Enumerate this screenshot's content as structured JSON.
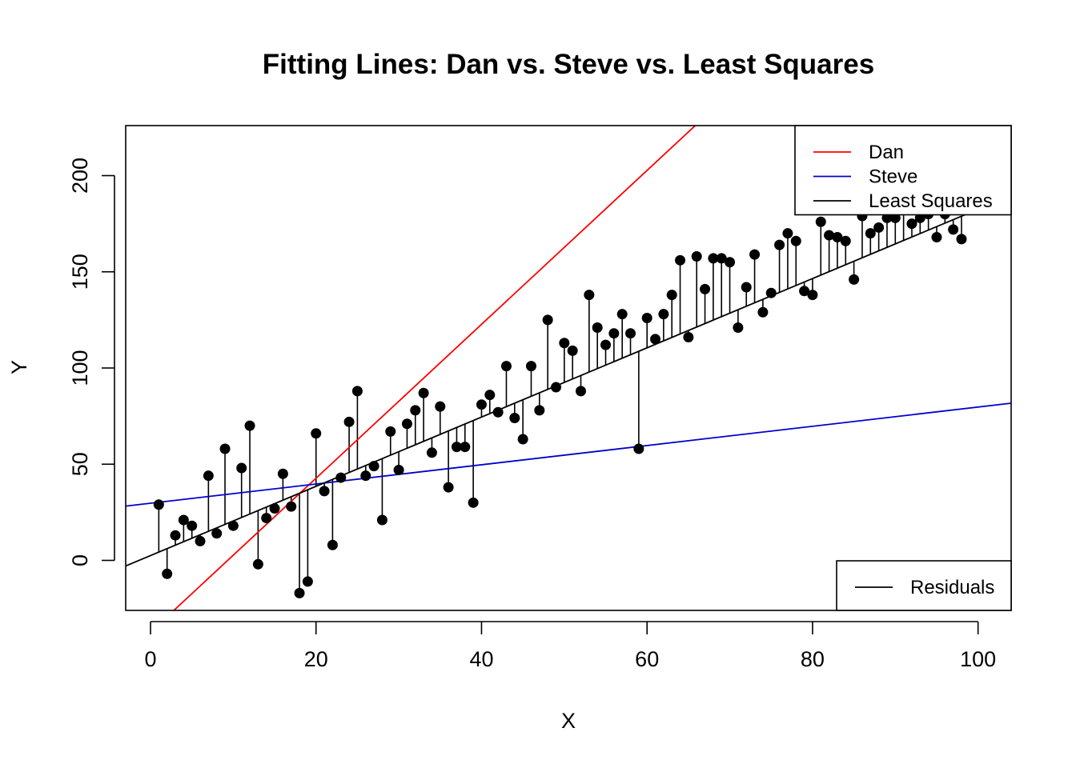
{
  "chart_data": {
    "type": "scatter",
    "title": "Fitting Lines: Dan vs. Steve vs. Least Squares",
    "xlabel": "X",
    "ylabel": "Y",
    "xlim": [
      -3,
      104
    ],
    "ylim": [
      -26,
      226
    ],
    "x_ticks": [
      0,
      20,
      40,
      60,
      80,
      100
    ],
    "y_ticks": [
      0,
      50,
      100,
      150,
      200
    ],
    "grid": false,
    "points": {
      "x": [
        1,
        2,
        3,
        4,
        5,
        6,
        7,
        8,
        9,
        10,
        11,
        12,
        13,
        14,
        15,
        16,
        17,
        18,
        19,
        20,
        21,
        22,
        23,
        24,
        25,
        26,
        27,
        28,
        29,
        30,
        31,
        32,
        33,
        34,
        35,
        36,
        37,
        38,
        39,
        40,
        41,
        42,
        43,
        44,
        45,
        46,
        47,
        48,
        49,
        50,
        51,
        52,
        53,
        54,
        55,
        56,
        57,
        58,
        59,
        60,
        61,
        62,
        63,
        64,
        65,
        66,
        67,
        68,
        69,
        70,
        71,
        72,
        73,
        74,
        75,
        76,
        77,
        78,
        79,
        80,
        81,
        82,
        83,
        84,
        85,
        86,
        87,
        88,
        89,
        90,
        91,
        92,
        93,
        94,
        95,
        96,
        97,
        98
      ],
      "y": [
        29,
        -7,
        13,
        21,
        18,
        10,
        44,
        14,
        58,
        18,
        48,
        70,
        -2,
        22,
        27,
        45,
        28,
        -17,
        -11,
        66,
        36,
        8,
        43,
        72,
        88,
        44,
        49,
        21,
        67,
        47,
        71,
        78,
        87,
        56,
        80,
        38,
        59,
        59,
        30,
        81,
        86,
        77,
        101,
        74,
        63,
        101,
        78,
        125,
        90,
        113,
        109,
        88,
        138,
        121,
        112,
        118,
        128,
        118,
        58,
        126,
        115,
        128,
        138,
        156,
        116,
        158,
        141,
        157,
        157,
        155,
        121,
        142,
        159,
        129,
        139,
        164,
        170,
        166,
        140,
        138,
        176,
        169,
        168,
        166,
        146,
        179,
        170,
        173,
        178,
        178,
        182,
        175,
        178,
        180,
        168,
        180,
        172,
        167
      ]
    },
    "series": [
      {
        "name": "Dan",
        "color": "#ff0000",
        "intercept": -37.3,
        "slope": 4.0
      },
      {
        "name": "Steve",
        "color": "#0000cc",
        "intercept": 29.7,
        "slope": 0.5
      },
      {
        "name": "Least Squares",
        "color": "#000000",
        "intercept": 2.5,
        "slope": 1.8
      }
    ],
    "legend": {
      "position": "top-right",
      "entries": [
        {
          "name": "Dan",
          "color": "#ff0000"
        },
        {
          "name": "Steve",
          "color": "#0000cc"
        },
        {
          "name": "Least Squares",
          "color": "#000000"
        }
      ]
    },
    "residual_legend": {
      "position": "bottom-right",
      "entries": [
        {
          "name": "Residuals",
          "color": "#000000"
        }
      ]
    }
  }
}
